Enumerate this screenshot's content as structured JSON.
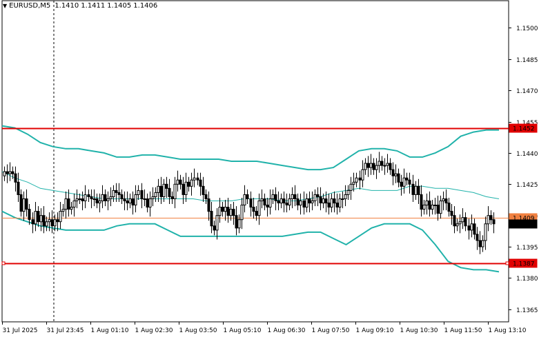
{
  "header": {
    "symbol_label": "EURUSD,M5",
    "quote_open": "1.1410",
    "quote_high": "1.1411",
    "quote_low": "1.1405",
    "quote_close": "1.1406"
  },
  "chart_data": {
    "type": "candlestick",
    "symbol": "EURUSD",
    "timeframe": "M5",
    "ylim": [
      1.1359,
      1.1513
    ],
    "y_ticks": [
      "1.1500",
      "1.1485",
      "1.1470",
      "1.1455",
      "1.1440",
      "1.1425",
      "1.1410",
      "1.1395",
      "1.1380",
      "1.1365"
    ],
    "x_ticks": [
      "31 Jul 2025",
      "31 Jul 23:45",
      "1 Aug 01:10",
      "1 Aug 02:30",
      "1 Aug 03:50",
      "1 Aug 05:10",
      "1 Aug 06:30",
      "1 Aug 07:50",
      "1 Aug 09:10",
      "1 Aug 10:30",
      "1 Aug 11:50",
      "1 Aug 13:10"
    ],
    "grid": false,
    "horizontal_levels": [
      {
        "value": 1.1452,
        "label": "1.1452",
        "color": "#e00000"
      },
      {
        "value": 1.1387,
        "label": "1.1387",
        "color": "#e00000"
      },
      {
        "value": 1.1409,
        "label": "1.1409",
        "color": "#f08040"
      }
    ],
    "current_price": {
      "value": 1.1406,
      "label": "1.1406"
    },
    "bollinger": {
      "color": "#20b2aa",
      "upper": [
        1.1453,
        1.1452,
        1.1449,
        1.1445,
        1.1443,
        1.1442,
        1.1442,
        1.1441,
        1.144,
        1.1438,
        1.1438,
        1.1439,
        1.1439,
        1.1438,
        1.1437,
        1.1437,
        1.1437,
        1.1437,
        1.1436,
        1.1436,
        1.1436,
        1.1435,
        1.1434,
        1.1433,
        1.1432,
        1.1432,
        1.1433,
        1.1437,
        1.1441,
        1.1442,
        1.1442,
        1.1441,
        1.1438,
        1.1438,
        1.144,
        1.1443,
        1.1448,
        1.145,
        1.1451,
        1.1451
      ],
      "middle": [
        1.1431,
        1.1428,
        1.1426,
        1.1423,
        1.1422,
        1.1421,
        1.142,
        1.1419,
        1.1418,
        1.1418,
        1.1418,
        1.1418,
        1.1418,
        1.1418,
        1.1418,
        1.1418,
        1.1417,
        1.1417,
        1.1417,
        1.1418,
        1.1418,
        1.1418,
        1.1417,
        1.1417,
        1.1418,
        1.1419,
        1.1421,
        1.1422,
        1.1423,
        1.1422,
        1.1422,
        1.1422,
        1.1424,
        1.1424,
        1.1423,
        1.1423,
        1.1422,
        1.1421,
        1.1419,
        1.1418
      ],
      "lower": [
        1.1412,
        1.1409,
        1.1407,
        1.1405,
        1.1404,
        1.1403,
        1.1403,
        1.1403,
        1.1403,
        1.1405,
        1.1406,
        1.1406,
        1.1406,
        1.1403,
        1.14,
        1.14,
        1.14,
        1.14,
        1.14,
        1.14,
        1.14,
        1.14,
        1.14,
        1.1401,
        1.1402,
        1.1402,
        1.1399,
        1.1396,
        1.14,
        1.1404,
        1.1406,
        1.1406,
        1.1406,
        1.1403,
        1.1396,
        1.1388,
        1.1385,
        1.1384,
        1.1384,
        1.1383
      ]
    },
    "candles": {
      "up_color": "#ffffff",
      "down_color": "#000000",
      "close": [
        1.1431,
        1.143,
        1.1431,
        1.143,
        1.1426,
        1.142,
        1.1412,
        1.1418,
        1.1413,
        1.1408,
        1.1406,
        1.1412,
        1.1407,
        1.141,
        1.1405,
        1.1407,
        1.1408,
        1.1405,
        1.1408,
        1.1407,
        1.1412,
        1.1413,
        1.1418,
        1.1413,
        1.1414,
        1.1417,
        1.1418,
        1.1418,
        1.1417,
        1.142,
        1.1419,
        1.1418,
        1.1418,
        1.1416,
        1.1417,
        1.142,
        1.1417,
        1.1418,
        1.1419,
        1.1422,
        1.1421,
        1.142,
        1.1418,
        1.1417,
        1.1416,
        1.1418,
        1.1415,
        1.142,
        1.1422,
        1.1418,
        1.1418,
        1.1414,
        1.1418,
        1.1419,
        1.1421,
        1.1424,
        1.1419,
        1.1425,
        1.1423,
        1.1419,
        1.1418,
        1.1425,
        1.1427,
        1.1425,
        1.142,
        1.1426,
        1.1424,
        1.1427,
        1.1428,
        1.1427,
        1.1424,
        1.142,
        1.1418,
        1.1412,
        1.1405,
        1.1403,
        1.141,
        1.1414,
        1.1412,
        1.1414,
        1.141,
        1.1413,
        1.141,
        1.1404,
        1.1408,
        1.1415,
        1.142,
        1.1418,
        1.1414,
        1.1412,
        1.141,
        1.1417,
        1.1418,
        1.1415,
        1.1414,
        1.1418,
        1.142,
        1.1417,
        1.1416,
        1.1418,
        1.1416,
        1.1415,
        1.1418,
        1.142,
        1.1418,
        1.1415,
        1.1417,
        1.1414,
        1.1418,
        1.1416,
        1.1417,
        1.142,
        1.1419,
        1.1416,
        1.1418,
        1.1416,
        1.1414,
        1.1418,
        1.1416,
        1.1414,
        1.1418,
        1.1418,
        1.142,
        1.1422,
        1.1425,
        1.1426,
        1.1428,
        1.1427,
        1.1432,
        1.1435,
        1.1433,
        1.1435,
        1.1432,
        1.1434,
        1.1436,
        1.1434,
        1.1434,
        1.1435,
        1.1432,
        1.1429,
        1.143,
        1.1426,
        1.1424,
        1.1428,
        1.1427,
        1.1425,
        1.142,
        1.1424,
        1.142,
        1.1413,
        1.1415,
        1.1417,
        1.1413,
        1.1415,
        1.1415,
        1.1411,
        1.1417,
        1.1418,
        1.1416,
        1.1412,
        1.141,
        1.1405,
        1.1406,
        1.1407,
        1.1409,
        1.1405,
        1.1403,
        1.1406,
        1.1401,
        1.1398,
        1.1395,
        1.1398,
        1.1406,
        1.141,
        1.1408,
        1.1406
      ]
    }
  }
}
